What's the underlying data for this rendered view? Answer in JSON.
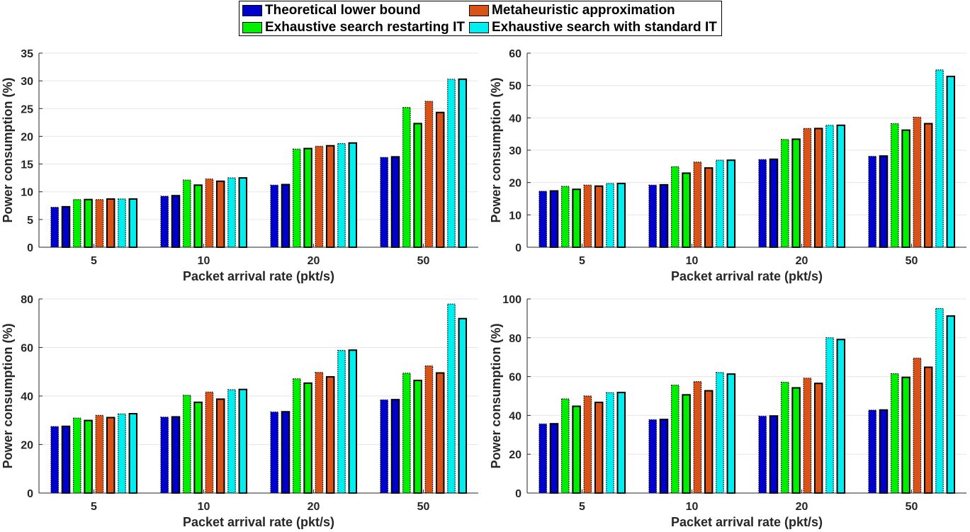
{
  "legend": {
    "items": [
      {
        "label": "Theoretical lower bound",
        "color": "#0000cc"
      },
      {
        "label": "Metaheuristic approximation",
        "color": "#d95319"
      },
      {
        "label": "Exhaustive search restarting IT",
        "color": "#00ee00"
      },
      {
        "label": "Exhaustive search with standard IT",
        "color": "#00eeee"
      }
    ]
  },
  "chart_data": [
    {
      "type": "bar",
      "xlabel": "Packet arrival rate (pkt/s)",
      "ylabel": "Power consumption (%)",
      "categories": [
        "5",
        "10",
        "20",
        "50"
      ],
      "ylim": [
        0,
        35
      ],
      "yticks": [
        0,
        5,
        10,
        15,
        20,
        25,
        30,
        35
      ],
      "series": [
        {
          "name": "Theoretical lower bound",
          "values": [
            7.2,
            9.2,
            11.2,
            16.2
          ]
        },
        {
          "values": [
            7.3,
            9.3,
            11.3,
            16.3
          ]
        },
        {
          "name": "Exhaustive search restarting IT",
          "values": [
            8.6,
            12.1,
            17.7,
            25.2
          ]
        },
        {
          "values": [
            8.6,
            11.2,
            17.8,
            22.3
          ]
        },
        {
          "name": "Metaheuristic approximation",
          "values": [
            8.6,
            12.3,
            18.2,
            26.3
          ]
        },
        {
          "values": [
            8.7,
            11.9,
            18.3,
            24.3
          ]
        },
        {
          "name": "Exhaustive search with standard IT",
          "values": [
            8.7,
            12.5,
            18.7,
            30.3
          ]
        },
        {
          "values": [
            8.7,
            12.5,
            18.8,
            30.3
          ]
        }
      ]
    },
    {
      "type": "bar",
      "xlabel": "Packet arrival rate (pkt/s)",
      "ylabel": "Power consumption (%)",
      "categories": [
        "5",
        "10",
        "20",
        "50"
      ],
      "ylim": [
        0,
        60
      ],
      "yticks": [
        0,
        10,
        20,
        30,
        40,
        50,
        60
      ],
      "series": [
        {
          "name": "Theoretical lower bound",
          "values": [
            17.3,
            19.2,
            27.1,
            28.1
          ]
        },
        {
          "values": [
            17.4,
            19.3,
            27.2,
            28.2
          ]
        },
        {
          "name": "Exhaustive search restarting IT",
          "values": [
            18.8,
            24.9,
            33.3,
            38.2
          ]
        },
        {
          "values": [
            17.9,
            22.9,
            33.4,
            36.2
          ]
        },
        {
          "name": "Metaheuristic approximation",
          "values": [
            19.2,
            26.3,
            36.7,
            40.2
          ]
        },
        {
          "values": [
            18.9,
            24.5,
            36.7,
            38.2
          ]
        },
        {
          "name": "Exhaustive search with standard IT",
          "values": [
            19.7,
            26.9,
            37.7,
            54.8
          ]
        },
        {
          "values": [
            19.7,
            26.9,
            37.7,
            52.8
          ]
        }
      ]
    },
    {
      "type": "bar",
      "xlabel": "Packet arrival rate (pkt/s)",
      "ylabel": "Power consumption (%)",
      "categories": [
        "5",
        "10",
        "20",
        "50"
      ],
      "ylim": [
        0,
        80
      ],
      "yticks": [
        0,
        20,
        40,
        60,
        80
      ],
      "series": [
        {
          "name": "Theoretical lower bound",
          "values": [
            27.4,
            31.3,
            33.4,
            38.4
          ]
        },
        {
          "values": [
            27.5,
            31.4,
            33.5,
            38.5
          ]
        },
        {
          "name": "Exhaustive search restarting IT",
          "values": [
            30.9,
            40.3,
            47.1,
            49.4
          ]
        },
        {
          "values": [
            29.9,
            37.4,
            45.3,
            46.4
          ]
        },
        {
          "name": "Metaheuristic approximation",
          "values": [
            32.0,
            41.6,
            49.7,
            52.4
          ]
        },
        {
          "values": [
            31.1,
            38.7,
            47.9,
            49.5
          ]
        },
        {
          "name": "Exhaustive search with standard IT",
          "values": [
            32.6,
            42.6,
            58.8,
            77.9
          ]
        },
        {
          "values": [
            32.7,
            42.7,
            58.9,
            71.9
          ]
        }
      ]
    },
    {
      "type": "bar",
      "xlabel": "Packet arrival rate (pkt/s)",
      "ylabel": "Power consumption (%)",
      "categories": [
        "5",
        "10",
        "20",
        "50"
      ],
      "ylim": [
        0,
        100
      ],
      "yticks": [
        0,
        20,
        40,
        60,
        80,
        100
      ],
      "series": [
        {
          "name": "Theoretical lower bound",
          "values": [
            35.6,
            37.8,
            39.6,
            42.7
          ]
        },
        {
          "values": [
            35.7,
            37.9,
            39.7,
            42.8
          ]
        },
        {
          "name": "Exhaustive search restarting IT",
          "values": [
            48.5,
            55.6,
            57.1,
            61.5
          ]
        },
        {
          "values": [
            44.7,
            50.6,
            54.2,
            59.6
          ]
        },
        {
          "name": "Metaheuristic approximation",
          "values": [
            50.0,
            57.4,
            59.2,
            69.5
          ]
        },
        {
          "values": [
            46.7,
            52.7,
            56.5,
            64.8
          ]
        },
        {
          "name": "Exhaustive search with standard IT",
          "values": [
            51.7,
            62.1,
            80.0,
            95.1
          ]
        },
        {
          "values": [
            51.8,
            61.3,
            79.1,
            91.2
          ]
        }
      ]
    }
  ]
}
